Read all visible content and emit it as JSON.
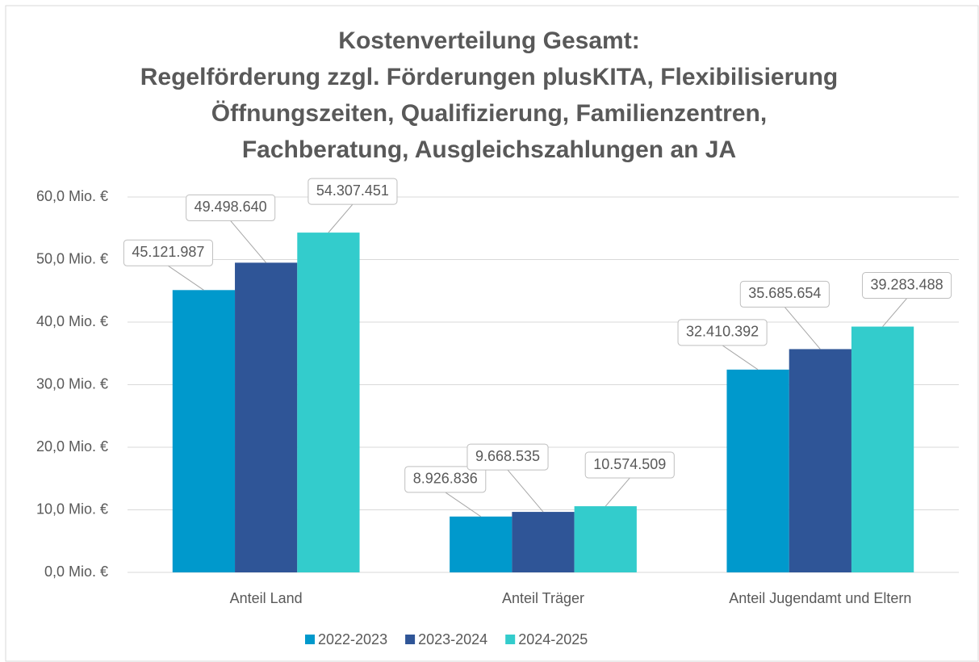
{
  "chart_data": {
    "type": "bar",
    "title": [
      "Kostenverteilung Gesamt:",
      "Regelförderung zzgl. Förderungen plusKITA, Flexibilisierung",
      "Öffnungszeiten, Qualifizierung, Familienzentren,",
      "Fachberatung, Ausgleichszahlungen an JA"
    ],
    "categories": [
      "Anteil Land",
      "Anteil Träger",
      "Anteil Jugendamt und Eltern"
    ],
    "series": [
      {
        "name": "2022-2023",
        "color": "#0099cc",
        "values": [
          45121987,
          8926836,
          32410392
        ],
        "value_labels": [
          "45.121.987",
          "8.926.836",
          "32.410.392"
        ]
      },
      {
        "name": "2023-2024",
        "color": "#2f5597",
        "values": [
          49498640,
          9668535,
          35685654
        ],
        "value_labels": [
          "49.498.640",
          "9.668.535",
          "35.685.654"
        ]
      },
      {
        "name": "2024-2025",
        "color": "#33cccc",
        "values": [
          54307451,
          10574509,
          39283488
        ],
        "value_labels": [
          "54.307.451",
          "10.574.509",
          "39.283.488"
        ]
      }
    ],
    "ylim": [
      0,
      60000000
    ],
    "yticks": [
      {
        "value": 0,
        "label": "0,0 Mio. €"
      },
      {
        "value": 10000000,
        "label": "10,0 Mio. €"
      },
      {
        "value": 20000000,
        "label": "20,0 Mio. €"
      },
      {
        "value": 30000000,
        "label": "30,0 Mio. €"
      },
      {
        "value": 40000000,
        "label": "40,0 Mio. €"
      },
      {
        "value": 50000000,
        "label": "50,0 Mio. €"
      },
      {
        "value": 60000000,
        "label": "60,0 Mio. €"
      }
    ],
    "grid": true,
    "legend": "bottom"
  }
}
